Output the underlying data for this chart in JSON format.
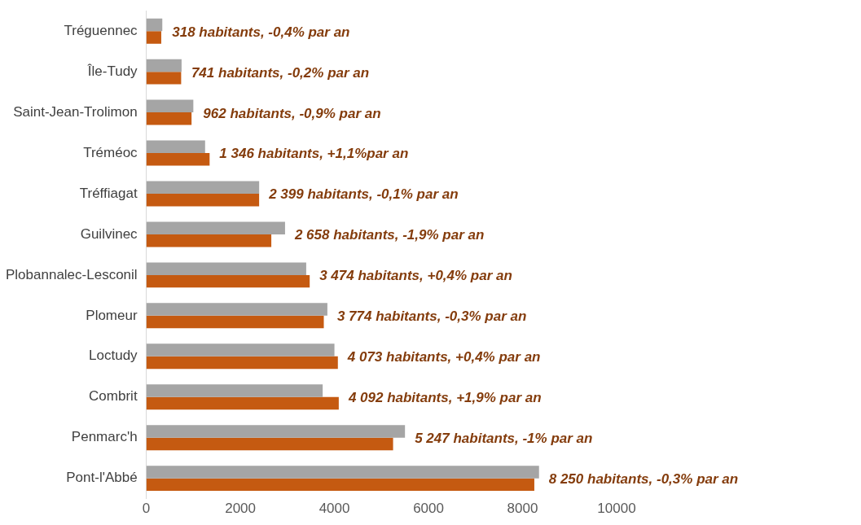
{
  "chart_data": {
    "type": "bar",
    "orientation": "horizontal",
    "grid": false,
    "legend": false,
    "categories": [
      "Tréguennec",
      "Île-Tudy",
      "Saint-Jean-Trolimon",
      "Tréméoc",
      "Tréffiagat",
      "Guilvinec",
      "Plobannalec-Lesconil",
      "Plomeur",
      "Loctudy",
      "Combrit",
      "Penmarc'h",
      "Pont-l'Abbé"
    ],
    "xlim": [
      0,
      10000
    ],
    "xticks": [
      0,
      2000,
      4000,
      6000,
      8000,
      10000
    ],
    "series": [
      {
        "color": "#a5a5a5",
        "values": [
          340,
          750,
          1000,
          1250,
          2400,
          2950,
          3400,
          3850,
          4000,
          3750,
          5500,
          8350
        ]
      },
      {
        "color": "#c55a11",
        "values": [
          318,
          741,
          962,
          1346,
          2399,
          2658,
          3474,
          3774,
          4073,
          4092,
          5247,
          8250
        ],
        "value_labels": [
          "318 habitants, -0,4% par an",
          "741 habitants, -0,2% par an",
          "962 habitants, -0,9% par an",
          "1 346 habitants, +1,1%par an",
          "2 399 habitants, -0,1% par an",
          "2 658 habitants, -1,9% par an",
          "3 474 habitants, +0,4% par an",
          "3 774 habitants, -0,3% par an",
          "4 073 habitants, +0,4% par an",
          "4 092 habitants, +1,9% par an",
          "5 247 habitants, -1% par an",
          "8 250 habitants, -0,3% par an"
        ]
      }
    ]
  }
}
